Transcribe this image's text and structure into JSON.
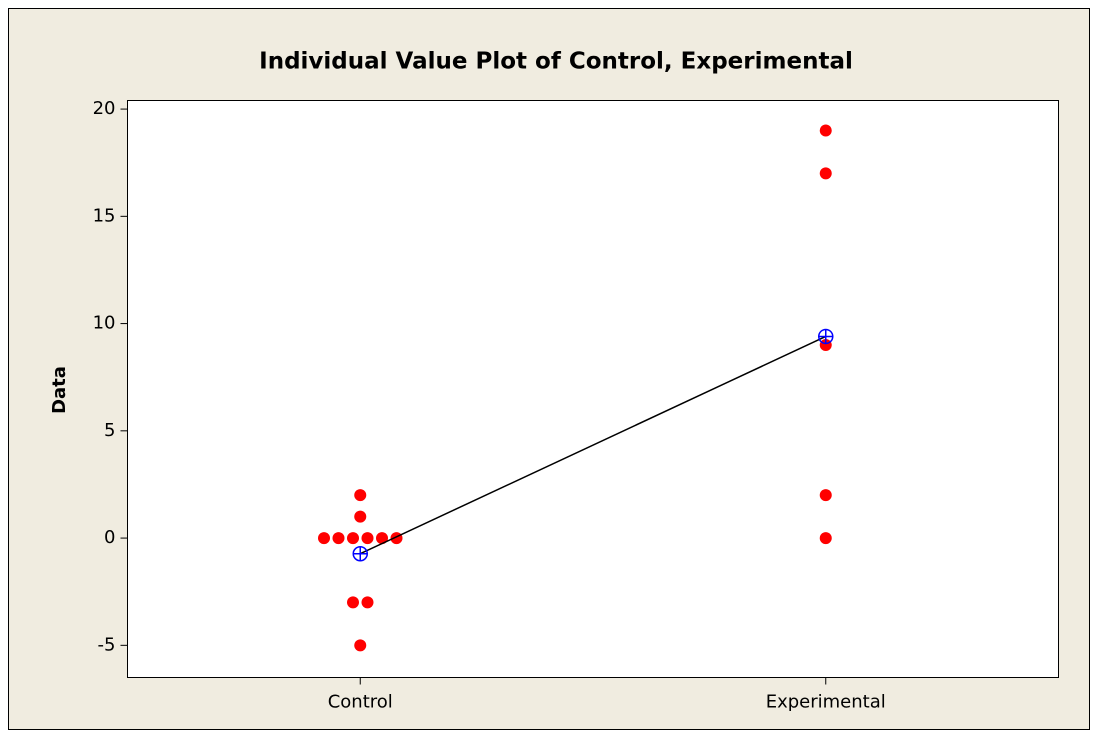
{
  "chart_data": {
    "type": "individual_value",
    "title": "Individual Value Plot of Control, Experimental",
    "y_label": "Data",
    "categories": [
      "Control",
      "Experimental"
    ],
    "values": [
      [
        2,
        1,
        0,
        0,
        0,
        0,
        0,
        0,
        -3,
        -3,
        -5
      ],
      [
        19,
        17,
        9,
        2,
        0
      ]
    ],
    "means": [
      -0.73,
      9.4
    ],
    "color": "#ff0000",
    "mean_color": "#0000ff",
    "connect_color": "#000000",
    "ylim": [
      -6.5,
      20.4
    ],
    "yticks": [
      -5,
      0,
      5,
      10,
      15,
      20
    ]
  }
}
